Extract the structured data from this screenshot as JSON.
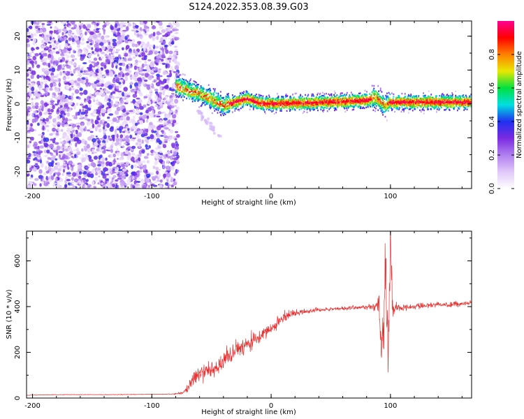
{
  "title": "S124.2022.353.08.39.G03",
  "colors": {
    "snr_line": "#e83030",
    "frame": "#000000"
  },
  "chart_data": [
    {
      "type": "heatmap",
      "xlabel": "Height of straight line (km)",
      "ylabel": "Frequency (Hz)",
      "xlim": [
        -205,
        168
      ],
      "ylim": [
        -25,
        24.5
      ],
      "xticks": [
        -200,
        -100,
        0,
        100
      ],
      "yticks": [
        -20,
        -10,
        0,
        10,
        20
      ],
      "colorbar": {
        "label": "Normalized spectral amplitude",
        "range": [
          0,
          1
        ],
        "ticks": [
          "0.0",
          "0.2",
          "0.4",
          "0.6",
          "0.8"
        ],
        "tick_values": [
          0.0,
          0.2,
          0.4,
          0.6,
          0.8
        ],
        "colormap": [
          "#ffffff",
          "#e0c8f8",
          "#b080f0",
          "#7a2be0",
          "#2030f0",
          "#00e0e0",
          "#00e040",
          "#e8e800",
          "#ff8000",
          "#ff0000",
          "#ff0090"
        ]
      },
      "noise_region": [
        -205,
        -78
      ],
      "signal_track": [
        {
          "x": -80,
          "f": 5.5
        },
        {
          "x": -70,
          "f": 4.0
        },
        {
          "x": -60,
          "f": 3.0
        },
        {
          "x": -50,
          "f": 1.5
        },
        {
          "x": -40,
          "f": -0.5
        },
        {
          "x": -30,
          "f": 0.5
        },
        {
          "x": -20,
          "f": 1.5
        },
        {
          "x": -10,
          "f": 0.2
        },
        {
          "x": 0,
          "f": 0.0
        },
        {
          "x": 50,
          "f": 0.5
        },
        {
          "x": 80,
          "f": 1.0
        },
        {
          "x": 88,
          "f": 2.0
        },
        {
          "x": 95,
          "f": -0.5
        },
        {
          "x": 100,
          "f": 0.5
        },
        {
          "x": 168,
          "f": 0.5
        }
      ]
    },
    {
      "type": "line",
      "xlabel": "Height of straight line (km)",
      "ylabel": "SNR (10 * v/v)",
      "xlim": [
        -205,
        168
      ],
      "ylim": [
        0,
        730
      ],
      "xticks": [
        -200,
        -100,
        0,
        100
      ],
      "yticks": [
        0,
        200,
        400,
        600
      ],
      "series": [
        {
          "x": [
            -205,
            -190,
            -170,
            -150,
            -130,
            -110,
            -90,
            -80,
            -75,
            -70,
            -65,
            -60,
            -55,
            -50,
            -45,
            -40,
            -35,
            -30,
            -25,
            -20,
            -15,
            -10,
            -5,
            0,
            5,
            10,
            15,
            20,
            25,
            30,
            40,
            50,
            60,
            70,
            80,
            85,
            90,
            93,
            96,
            98,
            100,
            102,
            105,
            110,
            120,
            130,
            140,
            150,
            160,
            168
          ],
          "y": [
            12,
            14,
            15,
            15,
            15,
            16,
            17,
            18,
            22,
            40,
            90,
            110,
            120,
            130,
            140,
            160,
            185,
            205,
            225,
            240,
            255,
            270,
            290,
            305,
            325,
            350,
            365,
            370,
            375,
            380,
            385,
            390,
            392,
            395,
            398,
            400,
            398,
            200,
            600,
            100,
            650,
            380,
            400,
            395,
            400,
            405,
            410,
            408,
            412,
            415
          ],
          "noise": [
            1,
            1,
            1,
            1,
            1,
            1,
            1,
            2,
            6,
            20,
            35,
            40,
            40,
            38,
            38,
            40,
            42,
            42,
            40,
            38,
            36,
            34,
            32,
            30,
            28,
            24,
            18,
            14,
            12,
            10,
            9,
            9,
            9,
            9,
            10,
            14,
            40,
            150,
            150,
            150,
            150,
            60,
            20,
            12,
            12,
            12,
            12,
            12,
            12,
            12
          ]
        }
      ]
    }
  ]
}
